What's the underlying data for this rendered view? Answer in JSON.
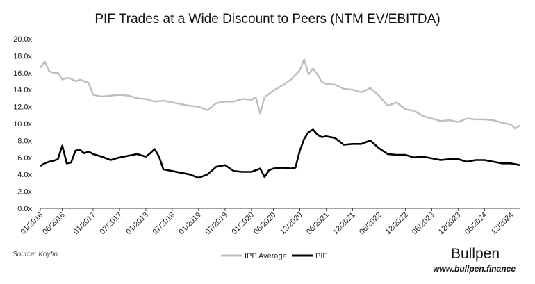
{
  "chart_data": {
    "type": "line",
    "title": "PIF Trades at a Wide Discount to Peers (NTM EV/EBITDA)",
    "xlabel": "",
    "ylabel": "",
    "ylim": [
      0,
      20
    ],
    "y_ticks": [
      "0.0x",
      "2.0x",
      "4.0x",
      "6.0x",
      "8.0x",
      "10.0x",
      "12.0x",
      "14.0x",
      "16.0x",
      "18.0x",
      "20.0x"
    ],
    "x_ticks": [
      "01/2016",
      "06/2016",
      "01/2017",
      "07/2017",
      "01/2018",
      "07/2018",
      "01/2019",
      "07/2019",
      "01/2020",
      "06/2020",
      "12/2020",
      "06/2021",
      "12/2021",
      "06/2022",
      "12/2022",
      "06/2023",
      "12/2023",
      "06/2024",
      "12/2024"
    ],
    "x_range": [
      "2016-01",
      "2025-02"
    ],
    "grid": false,
    "legend_position": "bottom-center",
    "series": [
      {
        "name": "IPP Average",
        "color": "#bdbdbd",
        "x": [
          "2016-01",
          "2016-02",
          "2016-03",
          "2016-04",
          "2016-05",
          "2016-06",
          "2016-07",
          "2016-08",
          "2016-09",
          "2016-10",
          "2016-11",
          "2016-12",
          "2017-01",
          "2017-03",
          "2017-05",
          "2017-07",
          "2017-09",
          "2017-11",
          "2018-01",
          "2018-03",
          "2018-05",
          "2018-07",
          "2018-09",
          "2018-11",
          "2019-01",
          "2019-03",
          "2019-05",
          "2019-07",
          "2019-09",
          "2019-11",
          "2020-01",
          "2020-02",
          "2020-03",
          "2020-04",
          "2020-05",
          "2020-06",
          "2020-08",
          "2020-10",
          "2020-12",
          "2021-01",
          "2021-02",
          "2021-03",
          "2021-04",
          "2021-05",
          "2021-06",
          "2021-08",
          "2021-10",
          "2021-12",
          "2022-02",
          "2022-04",
          "2022-06",
          "2022-08",
          "2022-10",
          "2022-12",
          "2023-02",
          "2023-04",
          "2023-06",
          "2023-08",
          "2023-10",
          "2023-12",
          "2024-02",
          "2024-04",
          "2024-06",
          "2024-08",
          "2024-10",
          "2024-12",
          "2025-01",
          "2025-02"
        ],
        "values": [
          16.6,
          17.3,
          16.2,
          16.0,
          16.0,
          15.2,
          15.4,
          15.3,
          15.0,
          15.2,
          15.0,
          14.8,
          13.4,
          13.2,
          13.3,
          13.4,
          13.3,
          13.0,
          12.9,
          12.6,
          12.7,
          12.5,
          12.3,
          12.1,
          12.0,
          11.6,
          12.4,
          12.6,
          12.6,
          12.9,
          12.8,
          13.1,
          11.2,
          13.1,
          13.5,
          13.9,
          14.5,
          15.2,
          16.3,
          17.6,
          15.8,
          16.5,
          15.8,
          14.9,
          14.7,
          14.6,
          14.1,
          14.0,
          13.7,
          14.2,
          13.3,
          12.1,
          12.5,
          11.7,
          11.5,
          10.9,
          10.6,
          10.3,
          10.4,
          10.2,
          10.6,
          10.5,
          10.5,
          10.4,
          10.1,
          9.9,
          9.4,
          9.8
        ]
      },
      {
        "name": "PIF",
        "color": "#000000",
        "x": [
          "2016-01",
          "2016-02",
          "2016-03",
          "2016-04",
          "2016-05",
          "2016-06",
          "2016-07",
          "2016-08",
          "2016-09",
          "2016-10",
          "2016-11",
          "2016-12",
          "2017-01",
          "2017-03",
          "2017-05",
          "2017-07",
          "2017-09",
          "2017-11",
          "2018-01",
          "2018-02",
          "2018-03",
          "2018-04",
          "2018-05",
          "2018-07",
          "2018-09",
          "2018-11",
          "2019-01",
          "2019-03",
          "2019-05",
          "2019-07",
          "2019-09",
          "2019-11",
          "2020-01",
          "2020-02",
          "2020-03",
          "2020-04",
          "2020-05",
          "2020-06",
          "2020-08",
          "2020-10",
          "2020-11",
          "2020-12",
          "2021-01",
          "2021-02",
          "2021-03",
          "2021-04",
          "2021-05",
          "2021-06",
          "2021-08",
          "2021-10",
          "2021-12",
          "2022-02",
          "2022-04",
          "2022-06",
          "2022-08",
          "2022-10",
          "2022-12",
          "2023-02",
          "2023-04",
          "2023-06",
          "2023-08",
          "2023-10",
          "2023-12",
          "2024-02",
          "2024-04",
          "2024-06",
          "2024-08",
          "2024-10",
          "2024-12",
          "2025-02"
        ],
        "values": [
          5.0,
          5.3,
          5.5,
          5.6,
          5.8,
          7.4,
          5.3,
          5.4,
          6.8,
          6.9,
          6.5,
          6.7,
          6.4,
          6.1,
          5.7,
          6.0,
          6.2,
          6.4,
          6.1,
          6.5,
          7.0,
          6.1,
          4.6,
          4.4,
          4.2,
          4.0,
          3.6,
          4.0,
          4.9,
          5.1,
          4.4,
          4.3,
          4.3,
          4.5,
          4.7,
          3.7,
          4.5,
          4.7,
          4.8,
          4.7,
          4.8,
          6.8,
          8.2,
          9.0,
          9.3,
          8.7,
          8.4,
          8.5,
          8.3,
          7.5,
          7.6,
          7.6,
          8.0,
          7.1,
          6.4,
          6.3,
          6.3,
          6.0,
          6.1,
          5.9,
          5.7,
          5.8,
          5.8,
          5.5,
          5.7,
          5.7,
          5.5,
          5.3,
          5.3,
          5.1
        ]
      }
    ],
    "source_text": "Source: Koyfin",
    "brand": "Bullpen",
    "website": "www.bullpen.finance"
  }
}
